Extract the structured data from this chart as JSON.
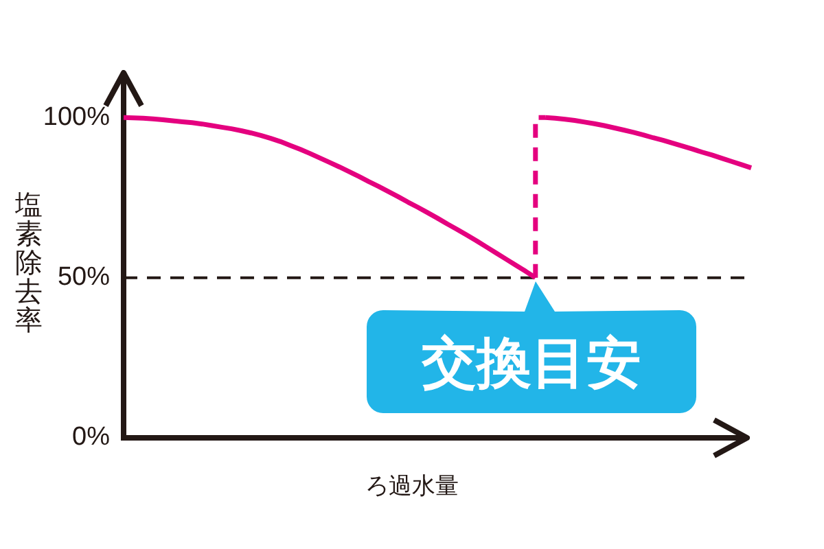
{
  "chart_data": {
    "type": "line",
    "categories": [
      null,
      null,
      null,
      null,
      null,
      null,
      null,
      null,
      null,
      null,
      null,
      null,
      null,
      null,
      null,
      null,
      null,
      null,
      null,
      null,
      null,
      null,
      null,
      null,
      null,
      null,
      null,
      null,
      null,
      null,
      null,
      null,
      null,
      null,
      null,
      null,
      null,
      null,
      null,
      null,
      null,
      null,
      null,
      null,
      null,
      null,
      null,
      null,
      null,
      null,
      null,
      null,
      null,
      null,
      null,
      null,
      null,
      null,
      null,
      null,
      null,
      null,
      null,
      null,
      null
    ],
    "series": [
      {
        "color": "#e4007f",
        "values": [
          100,
          99.9,
          99.8,
          99.6,
          99.3,
          99,
          98.7,
          98.4,
          98,
          97.5,
          97,
          96.5,
          95.9,
          95.2,
          94.4,
          93.5,
          92.5,
          91.3,
          90.1,
          88.8,
          87.4,
          86,
          84.6,
          83.1,
          81.6,
          80,
          78.5,
          76.9,
          75.3,
          73.6,
          72,
          70.3,
          68.6,
          66.8,
          65.1,
          63.3,
          61.5,
          59.6,
          57.7,
          55.8,
          53.9,
          52,
          50,
          null,
          null,
          null,
          null,
          null,
          null,
          null,
          null,
          null,
          null,
          null,
          null,
          null,
          null,
          null,
          null,
          null,
          null,
          null,
          null,
          null,
          null
        ]
      },
      {
        "type": "step",
        "color": "#e4007f",
        "line_style": "dashed",
        "values": [
          null,
          null,
          null,
          null,
          null,
          null,
          null,
          null,
          null,
          null,
          null,
          null,
          null,
          null,
          null,
          null,
          null,
          null,
          null,
          null,
          null,
          null,
          null,
          null,
          null,
          null,
          null,
          null,
          null,
          null,
          null,
          null,
          null,
          null,
          null,
          null,
          null,
          null,
          null,
          null,
          null,
          null,
          50,
          100,
          null,
          null,
          null,
          null,
          null,
          null,
          null,
          null,
          null,
          null,
          null,
          null,
          null,
          null,
          null,
          null,
          null,
          null,
          null,
          null,
          null
        ]
      },
      {
        "color": "#e4007f",
        "values": [
          null,
          null,
          null,
          null,
          null,
          null,
          null,
          null,
          null,
          null,
          null,
          null,
          null,
          null,
          null,
          null,
          null,
          null,
          null,
          null,
          null,
          null,
          null,
          null,
          null,
          null,
          null,
          null,
          null,
          null,
          null,
          null,
          null,
          null,
          null,
          null,
          null,
          null,
          null,
          null,
          null,
          null,
          null,
          100,
          99.8,
          99.5,
          99.1,
          98.6,
          98.1,
          97.5,
          96.8,
          96.1,
          95.4,
          94.6,
          93.7,
          92.9,
          92,
          91.1,
          90.2,
          89.2,
          88.3,
          87.3,
          86.3,
          85.3,
          84.3
        ]
      }
    ],
    "ylim": [
      0,
      114
    ],
    "yticks": [
      {
        "value": 0,
        "label": "0%"
      },
      {
        "value": 50,
        "label": "50%"
      },
      {
        "value": 100,
        "label": "100%"
      }
    ],
    "ylabel": "塩素除去率",
    "xlabel": "ろ過水量",
    "tick_labels": "y",
    "ref_lines": [
      {
        "axis": "y",
        "value": 50,
        "color": "#231815",
        "line_style": "dashed"
      }
    ],
    "annotations": [
      {
        "text": "交換目安",
        "y": 50
      }
    ]
  }
}
